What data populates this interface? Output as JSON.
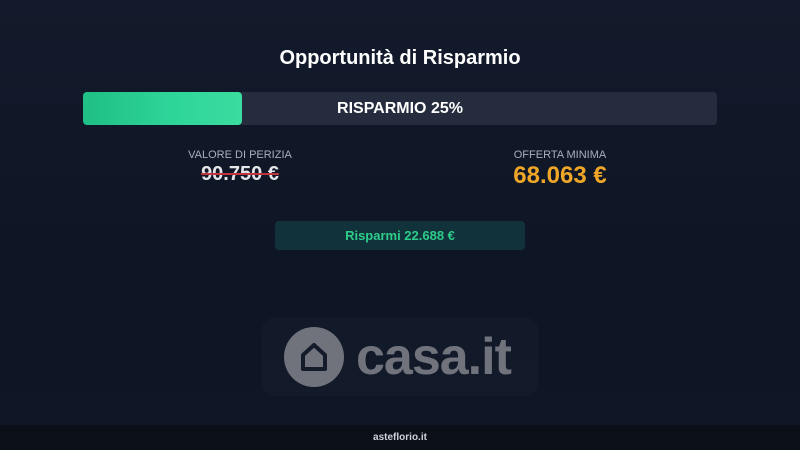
{
  "title": "Opportunità di Risparmio",
  "progress": {
    "label": "RISPARMIO 25%",
    "percent": 25,
    "color": "#2fd69a"
  },
  "perizia": {
    "label": "VALORE DI PERIZIA",
    "value": "90.750 €"
  },
  "offerta": {
    "label": "OFFERTA MINIMA",
    "value": "68.063 €",
    "color": "#f0a727"
  },
  "savings": "Risparmi 22.688 €",
  "logo": {
    "text": "casa.it",
    "icon": "house-icon"
  },
  "footer": "asteflorio.it"
}
